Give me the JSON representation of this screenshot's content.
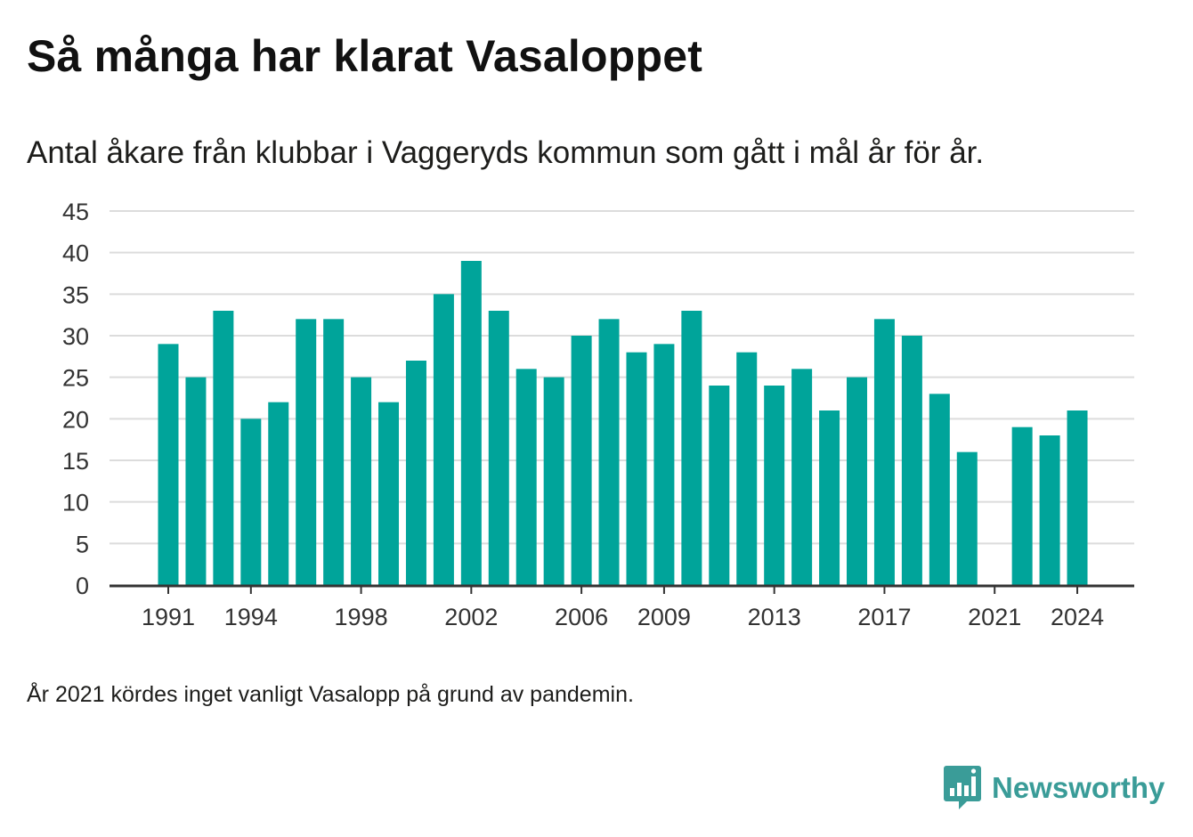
{
  "title": "Så många har klarat Vasaloppet",
  "subtitle": "Antal åkare från klubbar i Vaggeryds kommun som gått i mål år för år.",
  "footnote": "År 2021 kördes inget vanligt Vasalopp på grund av pandemin.",
  "brand": {
    "name": "Newsworthy",
    "logo_icon": "bar-chart-speech-bubble-icon"
  },
  "colors": {
    "bar": "#00a49a",
    "gridline": "#dcdcdc",
    "axis": "#333333",
    "brand": "#3a9c98"
  },
  "chart_data": {
    "type": "bar",
    "title": "Så många har klarat Vasaloppet",
    "subtitle": "Antal åkare från klubbar i Vaggeryds kommun som gått i mål år för år.",
    "xlabel": "",
    "ylabel": "",
    "ylim": [
      0,
      45
    ],
    "yticks": [
      0,
      5,
      10,
      15,
      20,
      25,
      30,
      35,
      40,
      45
    ],
    "xtick_labels": [
      "1991",
      "1994",
      "1998",
      "2002",
      "2006",
      "2009",
      "2013",
      "2017",
      "2021",
      "2024"
    ],
    "grid": true,
    "legend": "none",
    "categories": [
      1991,
      1992,
      1993,
      1994,
      1995,
      1996,
      1997,
      1998,
      1999,
      2000,
      2001,
      2002,
      2003,
      2004,
      2005,
      2006,
      2007,
      2008,
      2009,
      2010,
      2011,
      2012,
      2013,
      2014,
      2015,
      2016,
      2017,
      2018,
      2019,
      2020,
      2021,
      2022,
      2023,
      2024
    ],
    "values": [
      29,
      25,
      33,
      20,
      22,
      32,
      32,
      25,
      22,
      27,
      35,
      39,
      33,
      26,
      25,
      30,
      32,
      28,
      29,
      33,
      24,
      28,
      24,
      26,
      21,
      25,
      32,
      30,
      23,
      16,
      null,
      19,
      18,
      21
    ]
  }
}
